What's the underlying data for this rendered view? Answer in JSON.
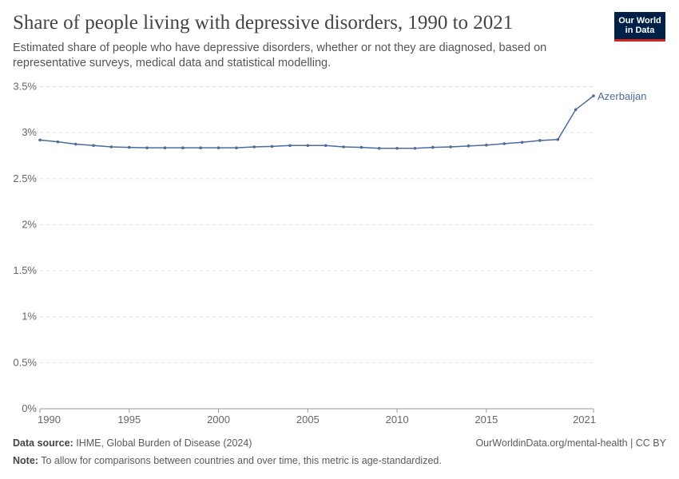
{
  "header": {
    "title": "Share of people living with depressive disorders, 1990 to 2021",
    "subtitle": "Estimated share of people who have depressive disorders, whether or not they are diagnosed, based on representative surveys, medical data and statistical modelling.",
    "logo": "Our World in Data"
  },
  "footer": {
    "source_label": "Data source:",
    "source": "IHME, Global Burden of Disease (2024)",
    "url": "OurWorldinData.org/mental-health | CC BY",
    "note_label": "Note:",
    "note": "To allow for comparisons between countries and over time, this metric is age-standardized."
  },
  "colors": {
    "series": "#4c6a9c",
    "grid": "#dddddd",
    "text": "#666666"
  },
  "chart_data": {
    "type": "line",
    "grid": true,
    "xlim": [
      1990,
      2021
    ],
    "ylim": [
      0,
      3.5
    ],
    "yticks": [
      0,
      0.5,
      1,
      1.5,
      2,
      2.5,
      3,
      3.5
    ],
    "ytick_labels": [
      "0%",
      "0.5%",
      "1%",
      "1.5%",
      "2%",
      "2.5%",
      "3%",
      "3.5%"
    ],
    "xticks": [
      1990,
      1995,
      2000,
      2005,
      2010,
      2015,
      2021
    ],
    "series": [
      {
        "name": "Azerbaijan",
        "x": [
          1990,
          1991,
          1992,
          1993,
          1994,
          1995,
          1996,
          1997,
          1998,
          1999,
          2000,
          2001,
          2002,
          2003,
          2004,
          2005,
          2006,
          2007,
          2008,
          2009,
          2010,
          2011,
          2012,
          2013,
          2014,
          2015,
          2016,
          2017,
          2018,
          2019,
          2020,
          2021
        ],
        "values": [
          2.92,
          2.9,
          2.875,
          2.86,
          2.845,
          2.84,
          2.835,
          2.835,
          2.835,
          2.835,
          2.835,
          2.835,
          2.845,
          2.85,
          2.86,
          2.86,
          2.86,
          2.845,
          2.84,
          2.83,
          2.83,
          2.83,
          2.84,
          2.845,
          2.855,
          2.865,
          2.88,
          2.895,
          2.915,
          2.925,
          3.25,
          3.4
        ]
      }
    ]
  }
}
